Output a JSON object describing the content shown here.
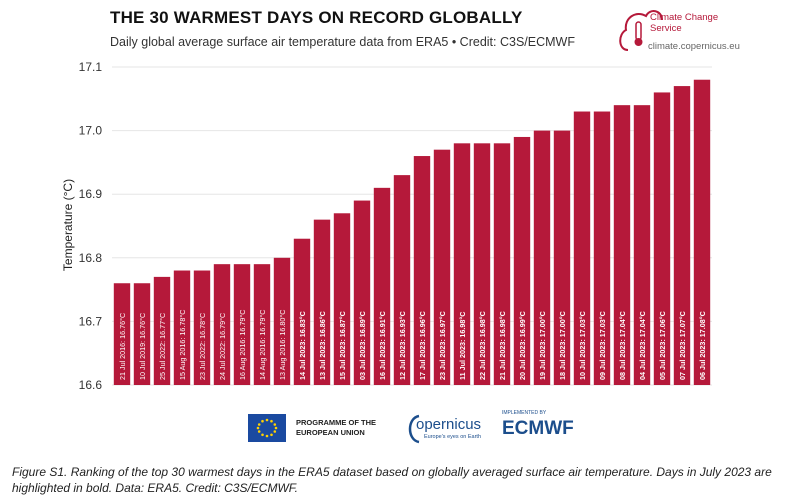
{
  "logo": {
    "name": "Climate Change Service",
    "url": "climate.copernicus.eu",
    "accent": "#b5193a"
  },
  "footer_logos": {
    "eu": "PROGRAMME OF THE EUROPEAN UNION",
    "copernicus": "opernicus",
    "copernicus_sub": "Europe's eyes on Earth",
    "ecmwf_small": "IMPLEMENTED BY",
    "ecmwf": "ECMWF"
  },
  "caption": "Figure S1. Ranking of the top 30 warmest days in the ERA5 dataset based on globally averaged surface air temperature. Days in July 2023 are highlighted in bold. Data: ERA5. Credit: C3S/ECMWF.",
  "chart_data": {
    "type": "bar",
    "title": "THE 30 WARMEST DAYS ON RECORD GLOBALLY",
    "subtitle": "Daily global average surface air temperature data from ERA5 • Credit: C3S/ECMWF",
    "xlabel": "",
    "ylabel": "Temperature (°C)",
    "ylim": [
      16.6,
      17.1
    ],
    "yticks": [
      "16.6",
      "16.7",
      "16.8",
      "16.9",
      "17.0",
      "17.1"
    ],
    "bar_color": "#b5193a",
    "grid": true,
    "categories": [
      "21 Jul 2016",
      "10 Jul 2019",
      "25 Jul 2022",
      "15 Aug 2016",
      "23 Jul 2022",
      "24 Jul 2022",
      "16 Aug 2016",
      "14 Aug 2016",
      "13 Aug 2016",
      "14 Jul 2023",
      "13 Jul 2023",
      "15 Jul 2023",
      "03 Jul 2023",
      "16 Jul 2023",
      "12 Jul 2023",
      "17 Jul 2023",
      "23 Jul 2023",
      "11 Jul 2023",
      "22 Jul 2023",
      "21 Jul 2023",
      "20 Jul 2023",
      "19 Jul 2023",
      "18 Jul 2023",
      "10 Jul 2023",
      "09 Jul 2023",
      "08 Jul 2023",
      "04 Jul 2023",
      "05 Jul 2023",
      "07 Jul 2023",
      "06 Jul 2023"
    ],
    "values": [
      16.76,
      16.76,
      16.77,
      16.78,
      16.78,
      16.79,
      16.79,
      16.79,
      16.8,
      16.83,
      16.86,
      16.87,
      16.89,
      16.91,
      16.93,
      16.96,
      16.97,
      16.98,
      16.98,
      16.98,
      16.99,
      17.0,
      17.0,
      17.03,
      17.03,
      17.04,
      17.04,
      17.06,
      17.07,
      17.08
    ],
    "labels": [
      "21 Jul 2016: 16.76°C",
      "10 Jul 2019: 16.76°C",
      "25 Jul 2022: 16.77°C",
      "15 Aug 2016: 16.78°C",
      "23 Jul 2022: 16.78°C",
      "24 Jul 2022: 16.79°C",
      "16 Aug 2016: 16.79°C",
      "14 Aug 2016: 16.79°C",
      "13 Aug 2016: 16.80°C",
      "14 Jul 2023: 16.83°C",
      "13 Jul 2023: 16.86°C",
      "15 Jul 2023: 16.87°C",
      "03 Jul 2023: 16.89°C",
      "16 Jul 2023: 16.91°C",
      "12 Jul 2023: 16.93°C",
      "17 Jul 2023: 16.96°C",
      "23 Jul 2023: 16.97°C",
      "11 Jul 2023: 16.98°C",
      "22 Jul 2023: 16.98°C",
      "21 Jul 2023: 16.98°C",
      "20 Jul 2023: 16.99°C",
      "19 Jul 2023: 17.00°C",
      "18 Jul 2023: 17.00°C",
      "10 Jul 2023: 17.03°C",
      "09 Jul 2023: 17.03°C",
      "08 Jul 2023: 17.04°C",
      "04 Jul 2023: 17.04°C",
      "05 Jul 2023: 17.06°C",
      "07 Jul 2023: 17.07°C",
      "06 Jul 2023: 17.08°C"
    ],
    "bold_labels": [
      false,
      false,
      false,
      false,
      false,
      false,
      false,
      false,
      false,
      true,
      true,
      true,
      true,
      true,
      true,
      true,
      true,
      true,
      true,
      true,
      true,
      true,
      true,
      true,
      true,
      true,
      true,
      true,
      true,
      true
    ]
  }
}
